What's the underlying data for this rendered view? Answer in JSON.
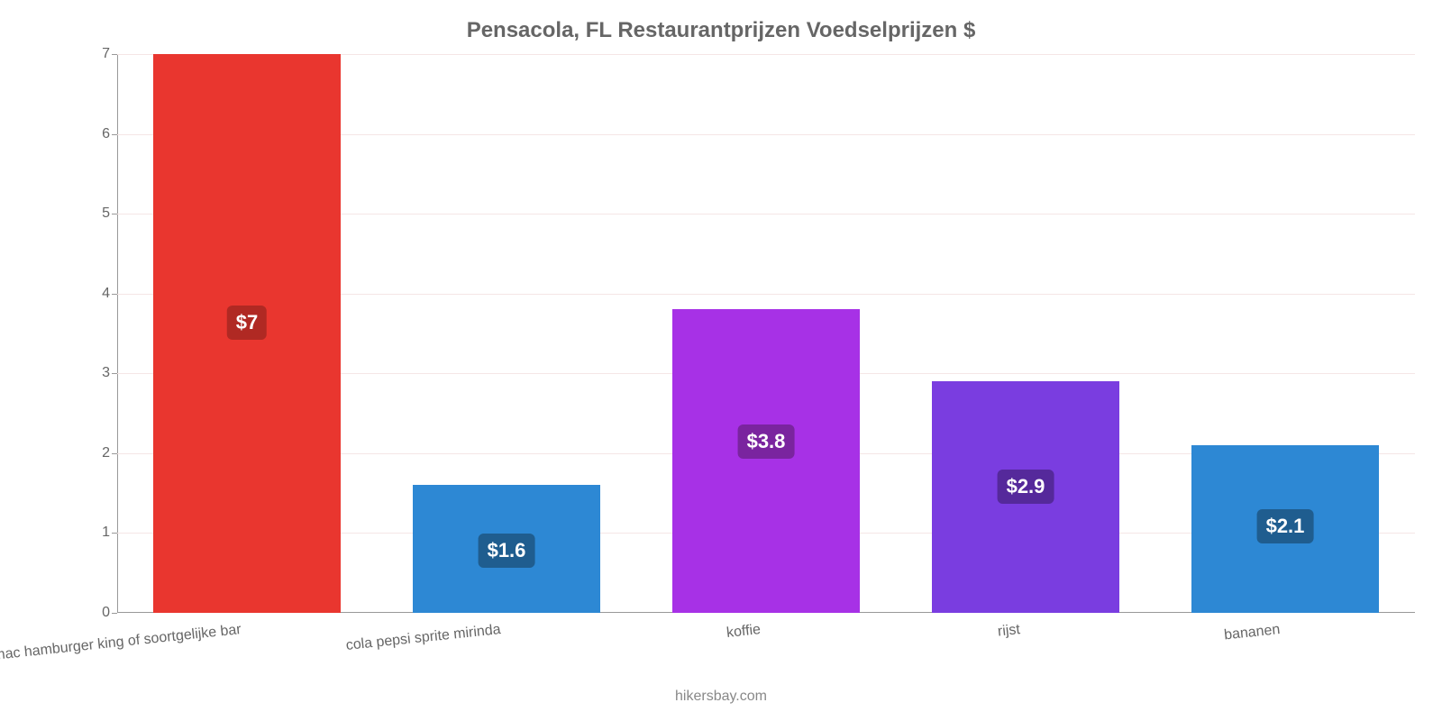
{
  "chart": {
    "type": "bar",
    "title": "Pensacola, FL Restaurantprijzen Voedselprijzen $",
    "title_fontsize": 24,
    "title_color": "#666666",
    "attribution": "hikersbay.com",
    "attribution_color": "#888888",
    "background_color": "#ffffff",
    "grid_color": "#f5e6e6",
    "axis_color": "#999999",
    "tick_label_color": "#666666",
    "tick_label_fontsize": 16,
    "x_label_fontsize": 16,
    "x_label_rotation_deg": -6,
    "ylim": [
      0,
      7
    ],
    "yticks": [
      0,
      1,
      2,
      3,
      4,
      5,
      6,
      7
    ],
    "bar_width_ratio": 0.72,
    "value_label_fontsize": 22,
    "value_label_color": "#ffffff",
    "value_label_radius": 6,
    "categories": [
      "mac hamburger king of soortgelijke bar",
      "cola pepsi sprite mirinda",
      "koffie",
      "rijst",
      "bananen"
    ],
    "values": [
      7,
      1.6,
      3.8,
      2.9,
      2.1
    ],
    "display_values": [
      "$7",
      "$1.6",
      "$3.8",
      "$2.9",
      "$2.1"
    ],
    "bar_colors": [
      "#e9362f",
      "#2d88d4",
      "#a731e6",
      "#7a3de0",
      "#2d88d4"
    ],
    "badge_colors": [
      "#b02923",
      "#1f5d8f",
      "#7a249f",
      "#55299b",
      "#1f5d8f"
    ]
  }
}
